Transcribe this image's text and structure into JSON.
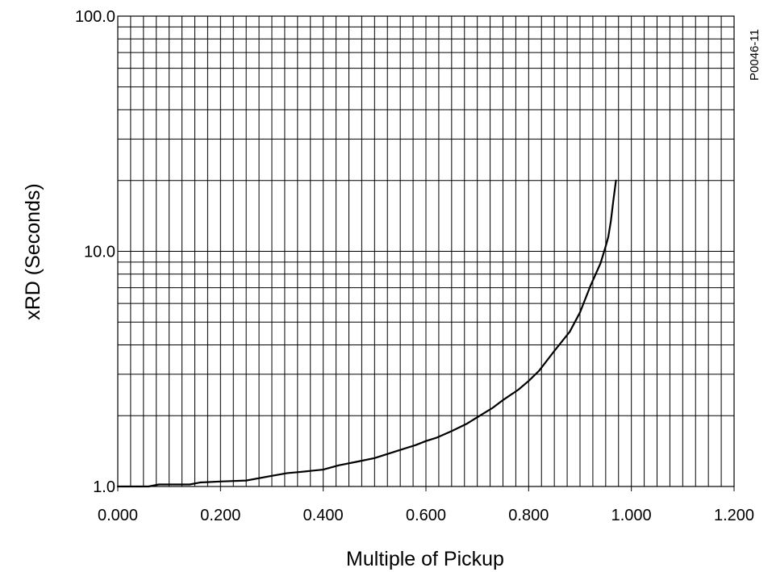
{
  "chart_data": {
    "type": "line",
    "xlabel": "Multiple of Pickup",
    "ylabel": "xRD (Seconds)",
    "side_label": "P0046-11",
    "x_scale": "linear",
    "y_scale": "log",
    "xlim": [
      0,
      1.2
    ],
    "ylim": [
      1,
      100
    ],
    "x_ticks": [
      "0.000",
      "0.200",
      "0.400",
      "0.600",
      "0.800",
      "1.000",
      "1.200"
    ],
    "y_ticks": [
      "1.0",
      "10.0",
      "100.0"
    ],
    "grid": true,
    "line_color": "#000000",
    "series": [
      {
        "x": [
          0.0,
          0.06,
          0.08,
          0.14,
          0.16,
          0.2,
          0.25,
          0.3,
          0.33,
          0.35,
          0.4,
          0.43,
          0.47,
          0.5,
          0.55,
          0.58,
          0.6,
          0.62,
          0.65,
          0.68,
          0.7,
          0.73,
          0.75,
          0.78,
          0.8,
          0.82,
          0.85,
          0.88,
          0.9,
          0.92,
          0.94,
          0.95,
          0.955,
          0.96,
          0.965,
          0.97
        ],
        "y": [
          1.0,
          1.0,
          1.02,
          1.02,
          1.04,
          1.05,
          1.06,
          1.11,
          1.14,
          1.15,
          1.18,
          1.23,
          1.28,
          1.32,
          1.43,
          1.5,
          1.56,
          1.61,
          1.72,
          1.85,
          1.97,
          2.16,
          2.33,
          2.58,
          2.81,
          3.1,
          3.77,
          4.55,
          5.5,
          7.1,
          8.9,
          10.5,
          11.5,
          13.4,
          16.5,
          20
        ]
      }
    ]
  }
}
